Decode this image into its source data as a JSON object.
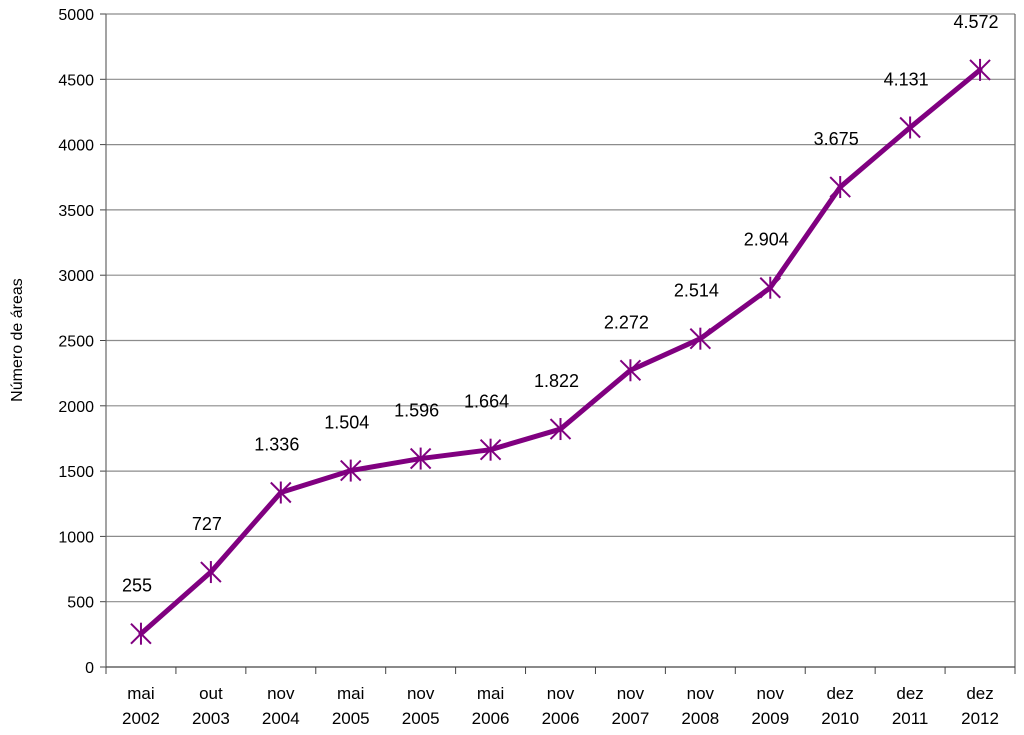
{
  "chart_data": {
    "type": "line",
    "title": "",
    "xlabel": "",
    "ylabel": "Número de áreas",
    "ylim": [
      0,
      5000
    ],
    "yticks": [
      0,
      500,
      1000,
      1500,
      2000,
      2500,
      3000,
      3500,
      4000,
      4500,
      5000
    ],
    "grid": true,
    "categories": [
      [
        "mai",
        "2002"
      ],
      [
        "out",
        "2003"
      ],
      [
        "nov",
        "2004"
      ],
      [
        "mai",
        "2005"
      ],
      [
        "nov",
        "2005"
      ],
      [
        "mai",
        "2006"
      ],
      [
        "nov",
        "2006"
      ],
      [
        "nov",
        "2007"
      ],
      [
        "nov",
        "2008"
      ],
      [
        "nov",
        "2009"
      ],
      [
        "dez",
        "2010"
      ],
      [
        "dez",
        "2011"
      ],
      [
        "dez",
        "2012"
      ]
    ],
    "series": [
      {
        "values": [
          255,
          727,
          1336,
          1504,
          1596,
          1664,
          1822,
          2272,
          2514,
          2904,
          3675,
          4131,
          4572
        ],
        "data_labels": [
          "255",
          "727",
          "1.336",
          "1.504",
          "1.596",
          "1.664",
          "1.822",
          "2.272",
          "2.514",
          "2.904",
          "3.675",
          "4.131",
          "4.572"
        ],
        "color": "#800080",
        "marker": "asterisk"
      }
    ]
  }
}
